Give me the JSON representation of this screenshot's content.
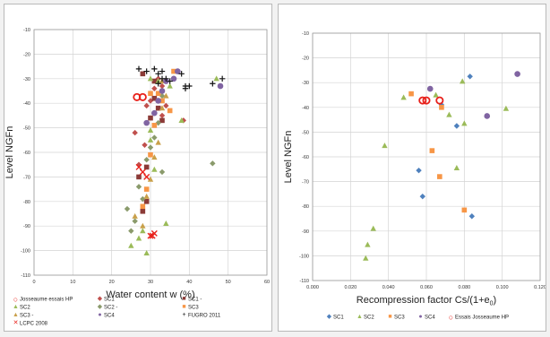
{
  "chart_data": [
    {
      "type": "scatter",
      "title": "",
      "xlabel": "Water content w (%)",
      "ylabel": "Level NGFn",
      "xlim": [
        0,
        60
      ],
      "ylim": [
        -110,
        -10
      ],
      "xticks": [
        "0",
        "10",
        "20",
        "30",
        "40",
        "50",
        "60"
      ],
      "yticks": [
        "-10",
        "-20",
        "-30",
        "-40",
        "-50",
        "-60",
        "-70",
        "-80",
        "-90",
        "-100",
        "-110"
      ],
      "grid": true,
      "legend_position": "bottom",
      "series": [
        {
          "name": "Josseaume essais HP",
          "color": "#e8201a",
          "marker": "ring",
          "points": [
            [
              26.5,
              -37.5
            ],
            [
              28,
              -37.5
            ]
          ]
        },
        {
          "name": "SC1",
          "color": "#c0504d",
          "marker": "diamond",
          "points": [
            [
              26,
              -52
            ],
            [
              27,
              -65
            ],
            [
              28.5,
              -57
            ],
            [
              29,
              -41
            ],
            [
              30,
              -39
            ],
            [
              31,
              -34
            ],
            [
              32,
              -30
            ],
            [
              33,
              -45
            ],
            [
              34,
              -41
            ],
            [
              33,
              -33
            ],
            [
              38.5,
              -47
            ]
          ]
        },
        {
          "name": "SC1 -",
          "color": "#8b3a37",
          "marker": "square",
          "points": [
            [
              27,
              -70
            ],
            [
              28,
              -84
            ],
            [
              29,
              -80
            ],
            [
              29,
              -66
            ],
            [
              30,
              -46
            ],
            [
              31,
              -38
            ],
            [
              32,
              -42
            ],
            [
              33,
              -47
            ],
            [
              28,
              -28
            ],
            [
              31,
              -31
            ]
          ]
        },
        {
          "name": "SC2",
          "color": "#9bbb59",
          "marker": "triangle",
          "points": [
            [
              25,
              -98
            ],
            [
              27,
              -95
            ],
            [
              28,
              -92
            ],
            [
              29,
              -101
            ],
            [
              30,
              -55
            ],
            [
              30,
              -51
            ],
            [
              31,
              -67
            ],
            [
              32,
              -31
            ],
            [
              34,
              -89
            ],
            [
              35,
              -33
            ],
            [
              38,
              -47
            ],
            [
              47,
              -30
            ],
            [
              30,
              -30
            ]
          ]
        },
        {
          "name": "SC2 -",
          "color": "#8a9a6b",
          "marker": "diamond",
          "points": [
            [
              24,
              -83
            ],
            [
              25,
              -92
            ],
            [
              26,
              -88
            ],
            [
              27,
              -74
            ],
            [
              28,
              -79
            ],
            [
              29,
              -63
            ],
            [
              30,
              -58
            ],
            [
              31,
              -54
            ],
            [
              31,
              -44
            ],
            [
              32,
              -48
            ],
            [
              33,
              -37
            ],
            [
              46,
              -64.5
            ],
            [
              33,
              -68
            ]
          ]
        },
        {
          "name": "SC3",
          "color": "#f79646",
          "marker": "square",
          "points": [
            [
              28,
              -82
            ],
            [
              29,
              -75
            ],
            [
              30,
              -61
            ],
            [
              31,
              -49
            ],
            [
              32,
              -36
            ],
            [
              33,
              -39
            ],
            [
              35,
              -43
            ],
            [
              36,
              -27
            ],
            [
              30,
              -36
            ]
          ]
        },
        {
          "name": "SC3 -",
          "color": "#c9a04a",
          "marker": "triangle",
          "points": [
            [
              26,
              -86
            ],
            [
              28,
              -90
            ],
            [
              29,
              -78
            ],
            [
              30,
              -71
            ],
            [
              31,
              -62
            ],
            [
              32,
              -56
            ],
            [
              33,
              -42
            ],
            [
              34,
              -37
            ],
            [
              33,
              -31
            ]
          ]
        },
        {
          "name": "SC4",
          "color": "#8064a2",
          "marker": "circle",
          "points": [
            [
              29,
              -48
            ],
            [
              31,
              -44
            ],
            [
              32,
              -39
            ],
            [
              33,
              -35
            ],
            [
              34,
              -31
            ],
            [
              36,
              -30
            ],
            [
              37,
              -27
            ],
            [
              48,
              -33
            ]
          ]
        },
        {
          "name": "FUGRO 2011",
          "color": "#111111",
          "marker": "plus",
          "points": [
            [
              27,
              -26
            ],
            [
              29,
              -27
            ],
            [
              31,
              -26
            ],
            [
              32,
              -28
            ],
            [
              32,
              -32
            ],
            [
              33,
              -30
            ],
            [
              33,
              -27
            ],
            [
              34,
              -30
            ],
            [
              35,
              -31
            ],
            [
              38,
              -28
            ],
            [
              39,
              -33
            ],
            [
              39,
              -34
            ],
            [
              40,
              -33
            ],
            [
              46,
              -32
            ],
            [
              48.5,
              -30
            ]
          ]
        },
        {
          "name": "LCPC 2008",
          "color": "#e8201a",
          "marker": "cross",
          "points": [
            [
              27,
              -66
            ],
            [
              28,
              -68
            ],
            [
              29,
              -70
            ],
            [
              30,
              -94
            ],
            [
              30.5,
              -94
            ],
            [
              31,
              -93
            ]
          ]
        }
      ]
    },
    {
      "type": "scatter",
      "title": "",
      "xlabel": "Recompression factor Cs/(1+e0)",
      "xlabel_main": "Recompression factor Cs/(1+e",
      "xlabel_sub": "0",
      "xlabel_close": ")",
      "ylabel": "Level NGFn",
      "xlim": [
        0,
        0.12
      ],
      "ylim": [
        -110,
        -10
      ],
      "xticks": [
        "0.000",
        "0.020",
        "0.040",
        "0.060",
        "0.080",
        "0.100",
        "0.120"
      ],
      "yticks": [
        "-10",
        "-20",
        "-30",
        "-40",
        "-50",
        "-60",
        "-70",
        "-80",
        "-90",
        "-100",
        "-110"
      ],
      "grid": true,
      "legend_position": "bottom",
      "series": [
        {
          "name": "SC1",
          "color": "#4f81bd",
          "marker": "diamond",
          "points": [
            [
              0.056,
              -65.5
            ],
            [
              0.058,
              -76
            ],
            [
              0.068,
              -39
            ],
            [
              0.076,
              -47.5
            ],
            [
              0.083,
              -27.5
            ],
            [
              0.084,
              -84
            ]
          ]
        },
        {
          "name": "SC2",
          "color": "#9bbb59",
          "marker": "triangle",
          "points": [
            [
              0.028,
              -101
            ],
            [
              0.029,
              -95.5
            ],
            [
              0.032,
              -89
            ],
            [
              0.038,
              -55.5
            ],
            [
              0.048,
              -36
            ],
            [
              0.065,
              -35
            ],
            [
              0.072,
              -43
            ],
            [
              0.076,
              -64.5
            ],
            [
              0.079,
              -29.5
            ],
            [
              0.08,
              -46.5
            ],
            [
              0.102,
              -40.5
            ]
          ]
        },
        {
          "name": "SC3",
          "color": "#f79646",
          "marker": "square",
          "points": [
            [
              0.052,
              -34.5
            ],
            [
              0.063,
              -57.5
            ],
            [
              0.067,
              -68
            ],
            [
              0.068,
              -40
            ],
            [
              0.08,
              -81.5
            ]
          ]
        },
        {
          "name": "SC4",
          "color": "#8064a2",
          "marker": "circle",
          "points": [
            [
              0.062,
              -32.5
            ],
            [
              0.092,
              -43.5
            ],
            [
              0.108,
              -26.5
            ]
          ]
        },
        {
          "name": "Essais Josseaume HP",
          "color": "#e8201a",
          "marker": "ring",
          "points": [
            [
              0.058,
              -37.2
            ],
            [
              0.06,
              -37.2
            ],
            [
              0.067,
              -37.2
            ]
          ]
        }
      ]
    }
  ]
}
